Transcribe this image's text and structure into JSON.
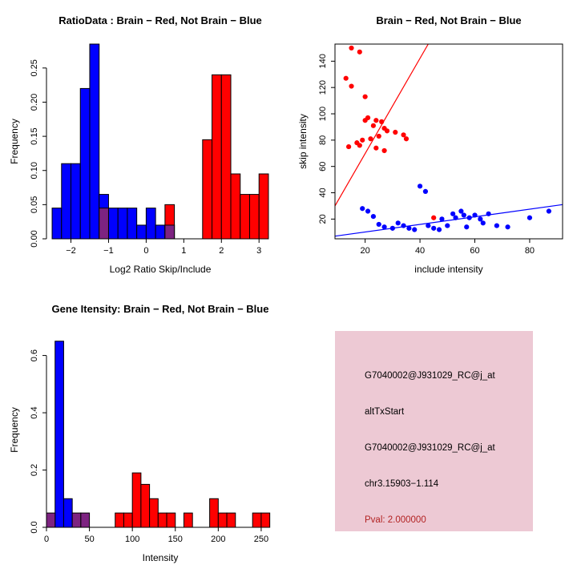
{
  "page": {
    "background": "#ffffff"
  },
  "colors": {
    "red": "#ff0000",
    "blue": "#0000ff",
    "purple": "#7d2381",
    "axis": "#000000"
  },
  "info_panel": {
    "bg": "#edc9d4",
    "lines": [
      {
        "text": "G7040002@J931029_RC@j_at",
        "color": "#000000"
      },
      {
        "text": "altTxStart",
        "color": "#000000"
      },
      {
        "text": "G7040002@J931029_RC@j_at",
        "color": "#000000"
      },
      {
        "text": "chr3.15903−1.114",
        "color": "#000000"
      },
      {
        "text": "Pval: 2.000000",
        "color": "#b22222"
      }
    ]
  },
  "chart_data": [
    {
      "type": "bar",
      "subtype": "histogram",
      "title": "RatioData : Brain − Red, Not Brain − Blue",
      "xlabel": "Log2 Ratio Skip/Include",
      "ylabel": "Frequency",
      "xlim": [
        -2.65,
        3.4
      ],
      "ylim": [
        0,
        0.285
      ],
      "grid": false,
      "xticks": [
        [
          -2,
          "−2"
        ],
        [
          -1,
          "−1"
        ],
        [
          0,
          "0"
        ],
        [
          1,
          "1"
        ],
        [
          2,
          "2"
        ],
        [
          3,
          "3"
        ]
      ],
      "yticks": [
        [
          0,
          "0.00"
        ],
        [
          0.05,
          "0.05"
        ],
        [
          0.1,
          "0.10"
        ],
        [
          0.15,
          "0.15"
        ],
        [
          0.2,
          "0.20"
        ],
        [
          0.25,
          "0.25"
        ]
      ],
      "box": false,
      "bars": [
        [
          -2.5,
          -2.25,
          0.045,
          "blue"
        ],
        [
          -2.25,
          -2.0,
          0.11,
          "blue"
        ],
        [
          -2.0,
          -1.75,
          0.11,
          "blue"
        ],
        [
          -1.75,
          -1.5,
          0.22,
          "blue"
        ],
        [
          -1.5,
          -1.25,
          0.285,
          "blue"
        ],
        [
          -1.25,
          -1.0,
          0.065,
          "blue"
        ],
        [
          -1.0,
          -0.75,
          0.045,
          "blue"
        ],
        [
          -0.75,
          -0.5,
          0.045,
          "blue"
        ],
        [
          -0.5,
          -0.25,
          0.045,
          "blue"
        ],
        [
          -0.25,
          0.0,
          0.02,
          "blue"
        ],
        [
          0.0,
          0.25,
          0.045,
          "blue"
        ],
        [
          0.25,
          0.5,
          0.02,
          "blue"
        ],
        [
          0.5,
          0.75,
          0.02,
          "blue"
        ],
        [
          1.5,
          1.75,
          0.145,
          "red"
        ],
        [
          1.75,
          2.0,
          0.24,
          "red"
        ],
        [
          2.0,
          2.25,
          0.24,
          "red"
        ],
        [
          2.25,
          2.5,
          0.095,
          "red"
        ],
        [
          2.5,
          2.75,
          0.065,
          "red"
        ],
        [
          2.75,
          3.0,
          0.065,
          "red"
        ],
        [
          3.0,
          3.25,
          0.095,
          "red"
        ],
        [
          0.5,
          0.75,
          0.05,
          "red"
        ],
        [
          -1.25,
          -1.0,
          0.045,
          "purple"
        ],
        [
          0.5,
          0.75,
          0.02,
          "purple"
        ]
      ]
    },
    {
      "type": "scatter",
      "title": "Brain − Red, Not Brain − Blue",
      "xlabel": "include intensity",
      "ylabel": "skip intensity",
      "xlim": [
        9,
        92
      ],
      "ylim": [
        5,
        153
      ],
      "grid": false,
      "xticks": [
        [
          20,
          "20"
        ],
        [
          40,
          "40"
        ],
        [
          60,
          "60"
        ],
        [
          80,
          "80"
        ]
      ],
      "yticks": [
        [
          20,
          "20"
        ],
        [
          40,
          "40"
        ],
        [
          60,
          "60"
        ],
        [
          80,
          "80"
        ],
        [
          100,
          "100"
        ],
        [
          120,
          "120"
        ],
        [
          140,
          "140"
        ]
      ],
      "box": true,
      "series": [
        {
          "name": "Brain",
          "color": "red",
          "points": [
            [
              14,
              75
            ],
            [
              15,
              150
            ],
            [
              18,
              147
            ],
            [
              13,
              127
            ],
            [
              15,
              121
            ],
            [
              20,
              113
            ],
            [
              21,
              97
            ],
            [
              20,
              95
            ],
            [
              24,
              95
            ],
            [
              26,
              94
            ],
            [
              23,
              91
            ],
            [
              27,
              89
            ],
            [
              28,
              87
            ],
            [
              31,
              86
            ],
            [
              34,
              84
            ],
            [
              25,
              83
            ],
            [
              22,
              81
            ],
            [
              19,
              80
            ],
            [
              17,
              78
            ],
            [
              18,
              76
            ],
            [
              24,
              74
            ],
            [
              27,
              72
            ],
            [
              35,
              81
            ],
            [
              45,
              21
            ]
          ]
        },
        {
          "name": "Not Brain",
          "color": "blue",
          "points": [
            [
              19,
              28
            ],
            [
              21,
              26
            ],
            [
              23,
              22
            ],
            [
              25,
              16
            ],
            [
              27,
              14
            ],
            [
              30,
              13
            ],
            [
              32,
              17
            ],
            [
              34,
              15
            ],
            [
              36,
              13
            ],
            [
              38,
              12
            ],
            [
              40,
              45
            ],
            [
              42,
              41
            ],
            [
              43,
              15
            ],
            [
              45,
              13
            ],
            [
              47,
              12
            ],
            [
              48,
              20
            ],
            [
              50,
              15
            ],
            [
              52,
              24
            ],
            [
              53,
              21
            ],
            [
              55,
              26
            ],
            [
              56,
              23
            ],
            [
              57,
              14
            ],
            [
              58,
              21
            ],
            [
              60,
              23
            ],
            [
              62,
              20
            ],
            [
              63,
              17
            ],
            [
              65,
              24
            ],
            [
              68,
              15
            ],
            [
              72,
              14
            ],
            [
              80,
              21
            ],
            [
              87,
              26
            ]
          ]
        }
      ],
      "lines": [
        {
          "color": "red",
          "x": [
            9,
            43
          ],
          "y": [
            30,
            153
          ]
        },
        {
          "color": "blue",
          "x": [
            9,
            92
          ],
          "y": [
            7,
            31
          ]
        }
      ]
    },
    {
      "type": "bar",
      "subtype": "histogram",
      "title": "Gene Itensity: Brain − Red, Not Brain − Blue",
      "xlabel": "Intensity",
      "ylabel": "Frequency",
      "xlim": [
        0,
        265
      ],
      "ylim": [
        0,
        0.68
      ],
      "grid": false,
      "xticks": [
        [
          0,
          "0"
        ],
        [
          50,
          "50"
        ],
        [
          100,
          "100"
        ],
        [
          150,
          "150"
        ],
        [
          200,
          "200"
        ],
        [
          250,
          "250"
        ]
      ],
      "yticks": [
        [
          0,
          "0.0"
        ],
        [
          0.2,
          "0.2"
        ],
        [
          0.4,
          "0.4"
        ],
        [
          0.6,
          "0.6"
        ]
      ],
      "box": false,
      "bars": [
        [
          10,
          20,
          0.65,
          "blue"
        ],
        [
          20,
          30,
          0.1,
          "blue"
        ],
        [
          80,
          90,
          0.05,
          "red"
        ],
        [
          90,
          100,
          0.05,
          "red"
        ],
        [
          100,
          110,
          0.19,
          "red"
        ],
        [
          110,
          120,
          0.15,
          "red"
        ],
        [
          120,
          130,
          0.1,
          "red"
        ],
        [
          130,
          140,
          0.05,
          "red"
        ],
        [
          140,
          150,
          0.05,
          "red"
        ],
        [
          160,
          170,
          0.05,
          "red"
        ],
        [
          190,
          200,
          0.1,
          "red"
        ],
        [
          200,
          210,
          0.05,
          "red"
        ],
        [
          210,
          220,
          0.05,
          "red"
        ],
        [
          240,
          250,
          0.05,
          "red"
        ],
        [
          250,
          260,
          0.05,
          "red"
        ],
        [
          0,
          10,
          0.05,
          "purple"
        ],
        [
          30,
          40,
          0.05,
          "purple"
        ],
        [
          40,
          50,
          0.05,
          "purple"
        ]
      ]
    }
  ]
}
